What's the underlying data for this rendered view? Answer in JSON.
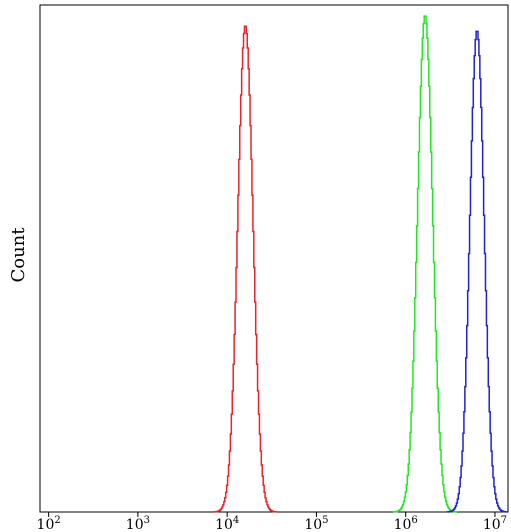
{
  "chart_data": {
    "type": "histogram",
    "ylabel": "Count",
    "xlabel": "",
    "x_scale": "log",
    "xlim": [
      80,
      14000000
    ],
    "ylim": [
      0,
      1
    ],
    "grid": false,
    "x_ticks": [
      {
        "value": 100,
        "base": "10",
        "exp": "2"
      },
      {
        "value": 1000,
        "base": "10",
        "exp": "3"
      },
      {
        "value": 10000,
        "base": "10",
        "exp": "4"
      },
      {
        "value": 100000,
        "base": "10",
        "exp": "5"
      },
      {
        "value": 1000000,
        "base": "10",
        "exp": "6"
      },
      {
        "value": 10000000,
        "base": "10",
        "exp": "7"
      }
    ],
    "series": [
      {
        "color": "#e8232a",
        "peak_x": 16000,
        "peak_y": 0.96,
        "spread_log": 0.085
      },
      {
        "color": "#1fe81f",
        "peak_x": 1650000,
        "peak_y": 0.98,
        "spread_log": 0.085
      },
      {
        "color": "#2222cc",
        "peak_x": 6300000,
        "peak_y": 0.95,
        "spread_log": 0.08
      }
    ]
  }
}
